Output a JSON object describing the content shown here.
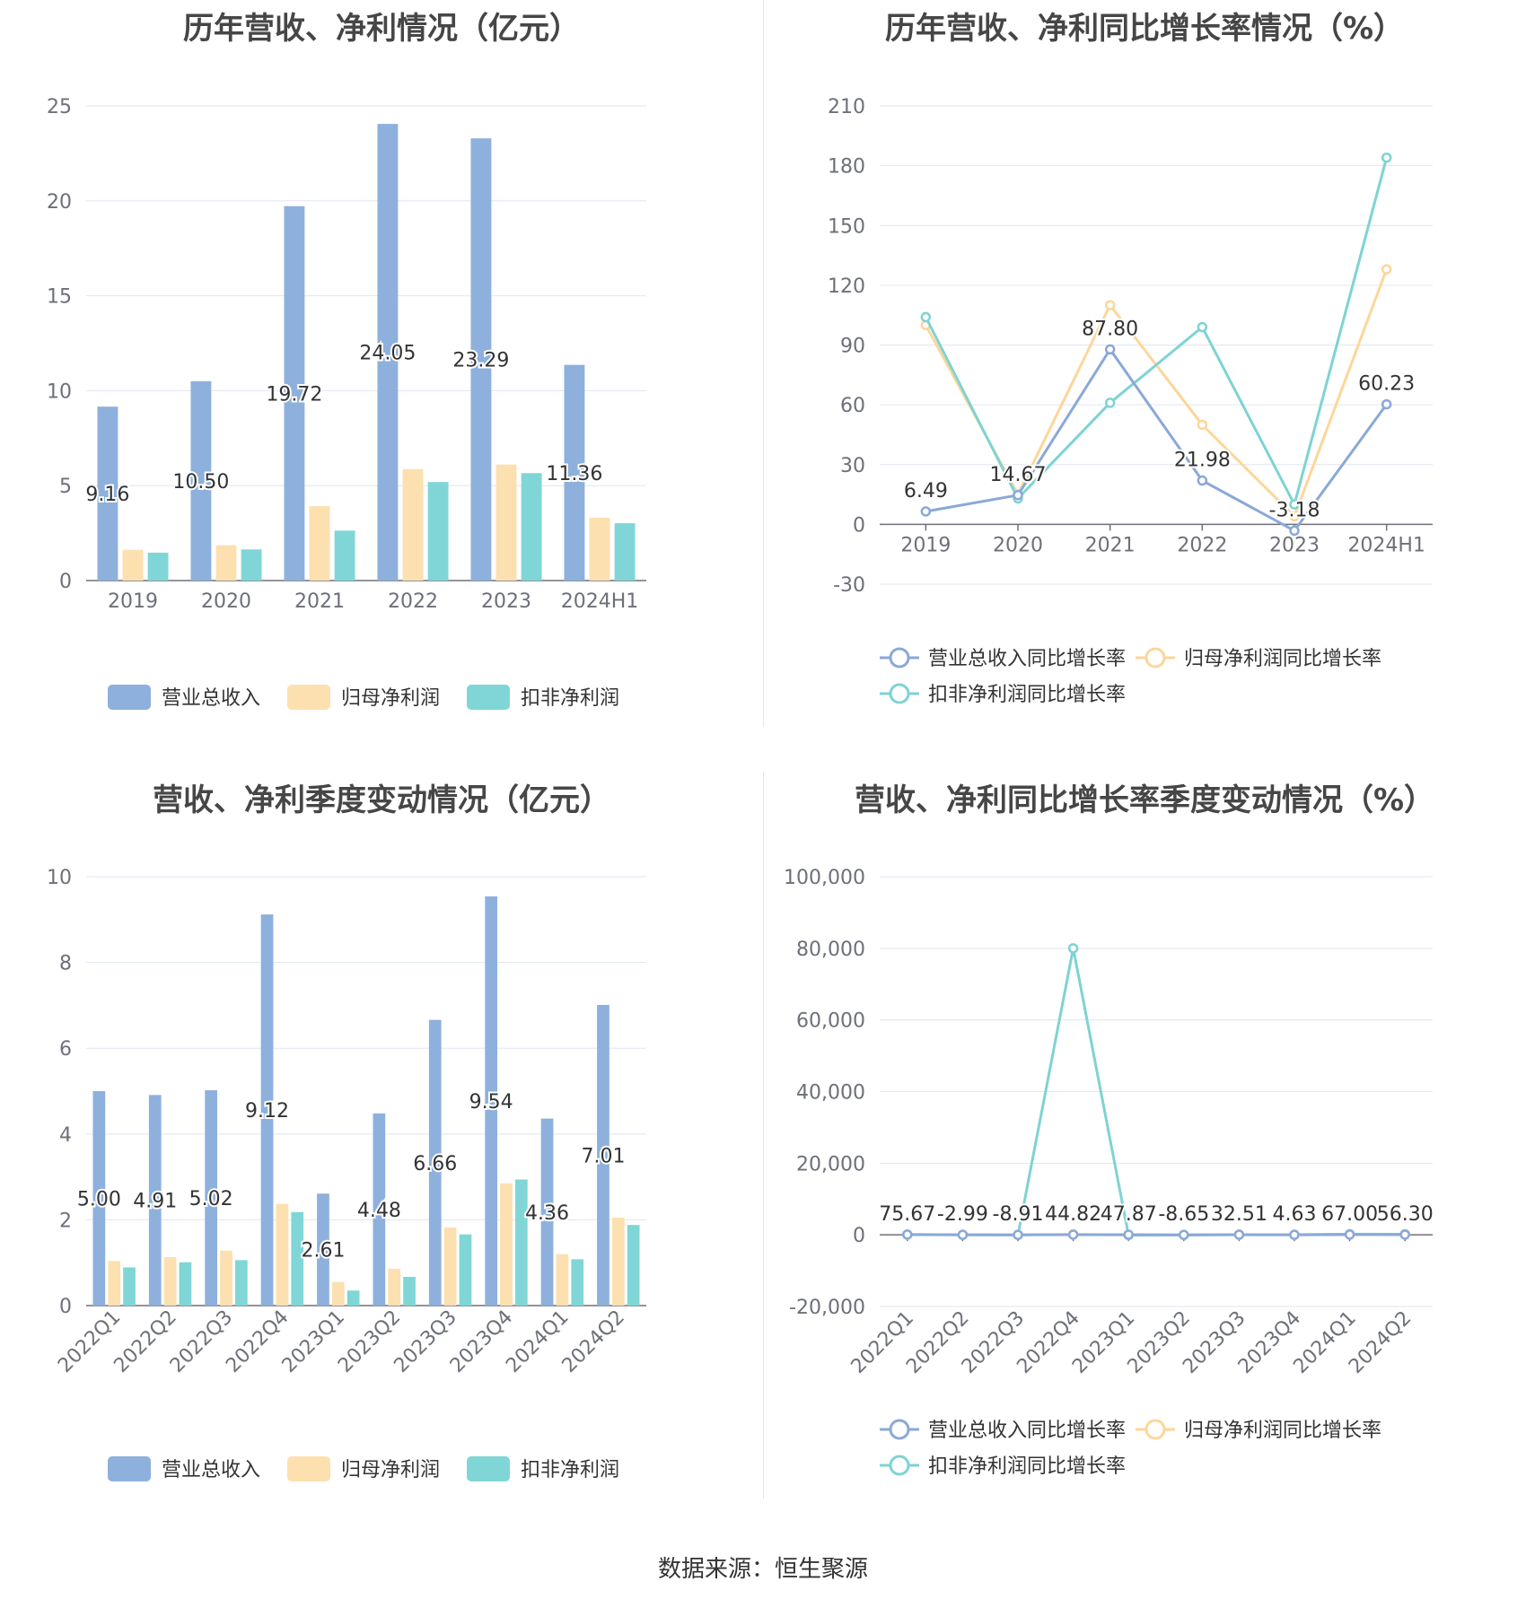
{
  "colors": {
    "revenue": "#8eb0dc",
    "net_profit": "#fde0b0",
    "deducted_profit": "#80d6d6",
    "revenue_line": "#8aa8d8",
    "net_profit_line": "#fcd69a",
    "deducted_line": "#7ed3d3"
  },
  "source": "数据来源：恒生聚源",
  "chart_data": [
    {
      "id": "annual-values",
      "type": "bar",
      "title": "历年营收、净利情况（亿元）",
      "categories": [
        "2019",
        "2020",
        "2021",
        "2022",
        "2023",
        "2024H1"
      ],
      "series": [
        {
          "name": "营业总收入",
          "values": [
            9.16,
            10.5,
            19.72,
            24.05,
            23.29,
            11.36
          ],
          "labels": [
            "9.16",
            "10.50",
            "19.72",
            "24.05",
            "23.29",
            "11.36"
          ]
        },
        {
          "name": "归母净利润",
          "values": [
            1.62,
            1.86,
            3.92,
            5.87,
            6.11,
            3.31
          ]
        },
        {
          "name": "扣非净利润",
          "values": [
            1.47,
            1.64,
            2.63,
            5.19,
            5.66,
            3.02
          ]
        }
      ],
      "yticks": [
        "0",
        "5",
        "10",
        "15",
        "20",
        "25"
      ],
      "ylim": [
        0,
        25
      ],
      "legend": "bottom"
    },
    {
      "id": "annual-growth",
      "type": "line",
      "title": "历年营收、净利同比增长率情况（%）",
      "categories": [
        "2019",
        "2020",
        "2021",
        "2022",
        "2023",
        "2024H1"
      ],
      "series": [
        {
          "name": "营业总收入同比增长率",
          "values": [
            6.49,
            14.67,
            87.8,
            21.98,
            -3.18,
            60.23
          ],
          "labels": [
            "6.49",
            "14.67",
            "87.80",
            "21.98",
            "-3.18",
            "60.23"
          ]
        },
        {
          "name": "归母净利润同比增长率",
          "values": [
            100,
            15,
            110,
            50,
            4,
            128
          ]
        },
        {
          "name": "扣非净利润同比增长率",
          "values": [
            104,
            13,
            61,
            99,
            10,
            184
          ]
        }
      ],
      "yticks": [
        "-30",
        "0",
        "30",
        "60",
        "90",
        "120",
        "150",
        "180",
        "210"
      ],
      "ylim": [
        -30,
        210
      ],
      "legend": "bottom"
    },
    {
      "id": "quarterly-values",
      "type": "bar",
      "title": "营收、净利季度变动情况（亿元）",
      "categories": [
        "2022Q1",
        "2022Q2",
        "2022Q3",
        "2022Q4",
        "2023Q1",
        "2023Q2",
        "2023Q3",
        "2023Q4",
        "2024Q1",
        "2024Q2"
      ],
      "series": [
        {
          "name": "营业总收入",
          "values": [
            5.0,
            4.91,
            5.02,
            9.12,
            2.61,
            4.48,
            6.66,
            9.54,
            4.36,
            7.01
          ],
          "labels": [
            "5.00",
            "4.91",
            "5.02",
            "9.12",
            "2.61",
            "4.48",
            "6.66",
            "9.54",
            "4.36",
            "7.01"
          ]
        },
        {
          "name": "归母净利润",
          "values": [
            1.04,
            1.13,
            1.28,
            2.37,
            0.55,
            0.86,
            1.82,
            2.85,
            1.2,
            2.05
          ]
        },
        {
          "name": "扣非净利润",
          "values": [
            0.89,
            1.01,
            1.06,
            2.18,
            0.35,
            0.67,
            1.66,
            2.94,
            1.08,
            1.88
          ]
        }
      ],
      "yticks": [
        "0",
        "2",
        "4",
        "6",
        "8",
        "10"
      ],
      "ylim": [
        0,
        10
      ],
      "legend": "bottom"
    },
    {
      "id": "quarterly-growth",
      "type": "line",
      "title": "营收、净利同比增长率季度变动情况（%）",
      "categories": [
        "2022Q1",
        "2022Q2",
        "2022Q3",
        "2022Q4",
        "2023Q1",
        "2023Q2",
        "2023Q3",
        "2023Q4",
        "2024Q1",
        "2024Q2"
      ],
      "series": [
        {
          "name": "营业总收入同比增长率",
          "values": [
            75.67,
            -2.99,
            -8.91,
            44.82,
            47.87,
            -8.65,
            32.51,
            4.63,
            67.0,
            56.3
          ],
          "labels": [
            "75.67",
            "-2.99",
            "-8.91",
            "44.82",
            "47.87",
            "-8.65",
            "32.51",
            "4.63",
            "67.00",
            "56.30"
          ]
        },
        {
          "name": "归母净利润同比增长率",
          "values": [
            60,
            10,
            -10,
            150,
            -70,
            -20,
            40,
            20,
            120,
            140
          ]
        },
        {
          "name": "扣非净利润同比增长率",
          "values": [
            70,
            20,
            -20,
            80000,
            -80,
            -30,
            50,
            30,
            200,
            170
          ]
        }
      ],
      "yticks": [
        "-20,000",
        "0",
        "20,000",
        "40,000",
        "60,000",
        "80,000",
        "100,000"
      ],
      "ylim": [
        -20000,
        100000
      ],
      "legend": "bottom"
    }
  ]
}
